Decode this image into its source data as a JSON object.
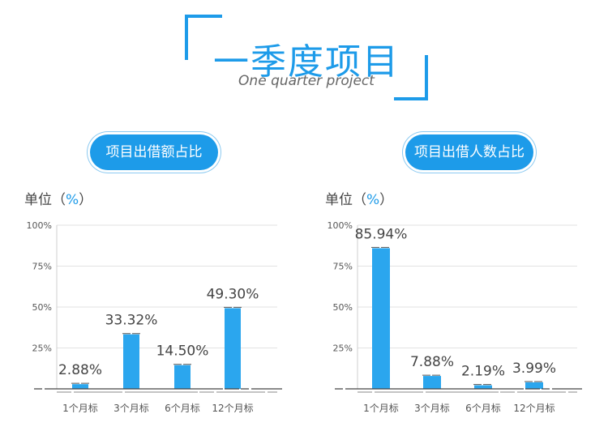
{
  "header": {
    "title": "一季度项目",
    "subtitle": "One quarter project"
  },
  "colors": {
    "accent": "#1d9be9",
    "bar": "#2ba6ee",
    "grid": "#e2e2e2"
  },
  "chart_data": [
    {
      "type": "bar",
      "title": "项目出借额占比",
      "unit_prefix": "单位（",
      "unit_pct": "%",
      "unit_suffix": "）",
      "categories": [
        "1个月标",
        "3个月标",
        "6个月标",
        "12个月标"
      ],
      "values": [
        2.88,
        33.32,
        14.5,
        49.3
      ],
      "value_labels": [
        "2.88%",
        "33.32%",
        "14.50%",
        "49.30%"
      ],
      "yticks": [
        "100%",
        "75%",
        "50%",
        "25%"
      ],
      "ylim": [
        0,
        100
      ]
    },
    {
      "type": "bar",
      "title": "项目出借人数占比",
      "unit_prefix": "单位（",
      "unit_pct": "%",
      "unit_suffix": "）",
      "categories": [
        "1个月标",
        "3个月标",
        "6个月标",
        "12个月标"
      ],
      "values": [
        85.94,
        7.88,
        2.19,
        3.99
      ],
      "value_labels": [
        "85.94%",
        "7.88%",
        "2.19%",
        "3.99%"
      ],
      "yticks": [
        "100%",
        "75%",
        "50%",
        "25%"
      ],
      "ylim": [
        0,
        100
      ]
    }
  ]
}
